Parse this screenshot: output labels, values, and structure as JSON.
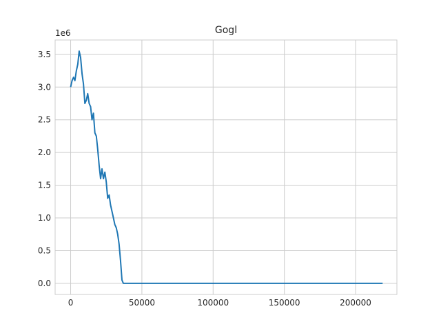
{
  "chart_data": {
    "type": "line",
    "title": "Gogl",
    "xlabel": "",
    "ylabel": "",
    "y_offset_label": "1e6",
    "xlim": [
      -10900,
      229000
    ],
    "ylim": [
      -0.17,
      3.72
    ],
    "x_ticks": [
      0,
      50000,
      100000,
      150000,
      200000
    ],
    "x_tick_labels": [
      "0",
      "50000",
      "100000",
      "150000",
      "200000"
    ],
    "y_ticks": [
      0.0,
      0.5,
      1.0,
      1.5,
      2.0,
      2.5,
      3.0,
      3.5
    ],
    "y_tick_labels": [
      "0.0",
      "0.5",
      "1.0",
      "1.5",
      "2.0",
      "2.5",
      "3.0",
      "3.5"
    ],
    "grid": true,
    "series": [
      {
        "color": "#1f77b4",
        "x": [
          0,
          1000,
          2000,
          3000,
          4000,
          5000,
          6000,
          7000,
          8000,
          9000,
          10000,
          11000,
          12000,
          13000,
          14000,
          15000,
          16000,
          17000,
          18000,
          19000,
          20000,
          21000,
          22000,
          23000,
          24000,
          25000,
          26000,
          27000,
          28000,
          29000,
          30000,
          31000,
          32000,
          33000,
          34000,
          35000,
          36000,
          37000,
          38000,
          50000,
          100000,
          150000,
          200000,
          219000
        ],
        "y": [
          3.0,
          3.1,
          3.15,
          3.1,
          3.25,
          3.35,
          3.55,
          3.45,
          3.2,
          3.05,
          2.75,
          2.8,
          2.9,
          2.75,
          2.7,
          2.5,
          2.6,
          2.3,
          2.25,
          2.05,
          1.8,
          1.6,
          1.75,
          1.6,
          1.7,
          1.55,
          1.3,
          1.35,
          1.2,
          1.1,
          1.0,
          0.9,
          0.85,
          0.75,
          0.6,
          0.35,
          0.05,
          0.0,
          0.0,
          0.0,
          0.0,
          0.0,
          0.0,
          0.0
        ]
      }
    ]
  }
}
